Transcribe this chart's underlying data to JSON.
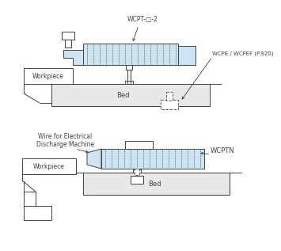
{
  "bg_color": "#ffffff",
  "line_color": "#404040",
  "fill_color": "#cde4f5",
  "gray_color": "#e8e8e8",
  "dashed_color": "#606060",
  "label_color": "#000000",
  "labels": {
    "wcpt": "WCPT-□-2",
    "wcpe": "WCPE / WCPEF (P.920)",
    "workpiece1": "Workpiece",
    "bed1": "Bed",
    "wire": "Wire for Electrical\nDischarge Machine",
    "wcptn": "WCPTN",
    "workpiece2": "Workpiece",
    "bed2": "Bed"
  },
  "font_size": 5.5,
  "line_width": 0.7
}
